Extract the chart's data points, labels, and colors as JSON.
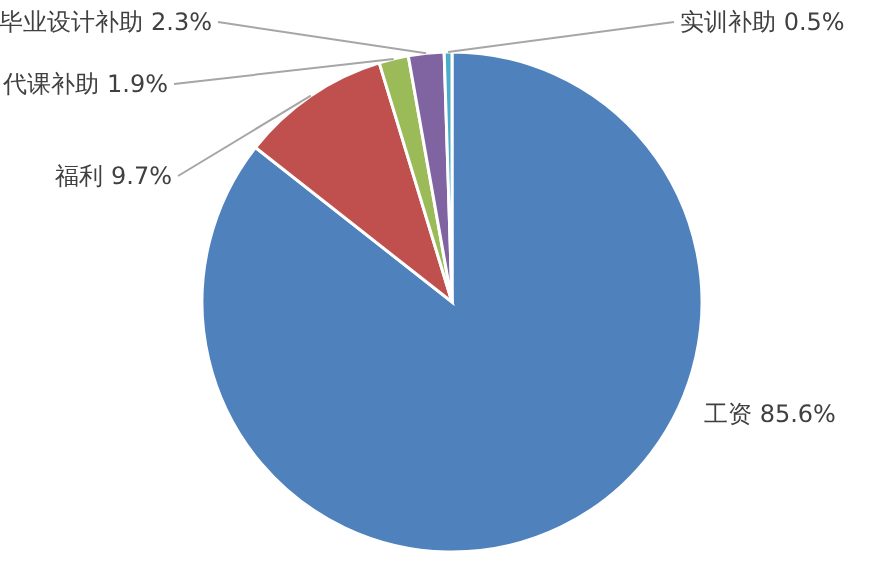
{
  "chart_data": {
    "type": "pie",
    "categories": [
      "工资",
      "福利",
      "代课补助",
      "毕业设计补助",
      "实训补助"
    ],
    "values": [
      85.6,
      9.7,
      1.9,
      2.3,
      0.5
    ],
    "value_labels": [
      "85.6%",
      "9.7%",
      "1.9%",
      "2.3%",
      "0.5%"
    ],
    "colors": [
      "#4f81bd",
      "#c0504d",
      "#9bbb59",
      "#8064a2",
      "#4bacc6"
    ],
    "legend": false
  }
}
